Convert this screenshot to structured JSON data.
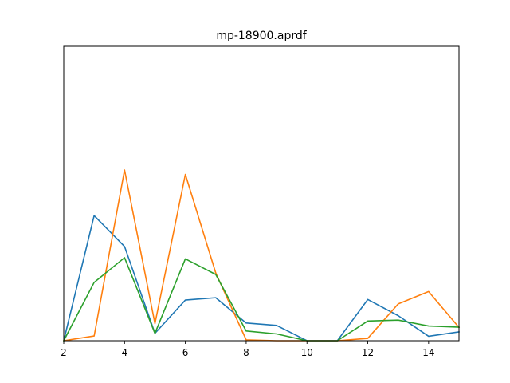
{
  "chart_data": {
    "type": "line",
    "title": "mp-18900.aprdf",
    "xlabel": "",
    "ylabel": "",
    "xlim": [
      2,
      15
    ],
    "ylim": [
      0,
      1.0
    ],
    "grid": false,
    "y_ticks_visible": false,
    "x_ticks": [
      2,
      4,
      6,
      8,
      10,
      12,
      14
    ],
    "x_tick_labels": [
      "2",
      "4",
      "6",
      "8",
      "10",
      "12",
      "14"
    ],
    "x": [
      2,
      3,
      4,
      5,
      6,
      7,
      8,
      9,
      10,
      11,
      12,
      13,
      14,
      15
    ],
    "series": [
      {
        "color": "#1f77b4",
        "values": [
          0.0,
          0.425,
          0.32,
          0.025,
          0.138,
          0.146,
          0.06,
          0.052,
          0.0,
          0.0,
          0.14,
          0.085,
          0.015,
          0.03
        ]
      },
      {
        "color": "#ff7f0e",
        "values": [
          0.0,
          0.016,
          0.58,
          0.058,
          0.565,
          0.23,
          0.003,
          0.0,
          0.0,
          0.0,
          0.008,
          0.125,
          0.167,
          0.045
        ]
      },
      {
        "color": "#2ca02c",
        "values": [
          0.0,
          0.198,
          0.282,
          0.025,
          0.278,
          0.225,
          0.033,
          0.023,
          0.0,
          0.0,
          0.067,
          0.07,
          0.05,
          0.046
        ]
      }
    ]
  }
}
